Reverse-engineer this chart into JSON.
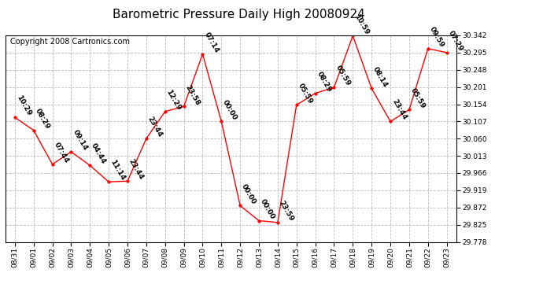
{
  "title": "Barometric Pressure Daily High 20080924",
  "copyright": "Copyright 2008 Cartronics.com",
  "x_labels": [
    "08/31",
    "09/01",
    "09/02",
    "09/03",
    "09/04",
    "09/05",
    "09/06",
    "09/07",
    "09/08",
    "09/09",
    "09/10",
    "09/11",
    "09/12",
    "09/13",
    "09/14",
    "09/15",
    "09/16",
    "09/17",
    "09/18",
    "09/19",
    "09/20",
    "09/21",
    "09/22",
    "09/23"
  ],
  "y_values": [
    30.118,
    30.083,
    29.99,
    30.024,
    29.987,
    29.942,
    29.944,
    30.06,
    30.134,
    30.148,
    30.291,
    30.107,
    29.877,
    29.836,
    29.831,
    30.152,
    30.184,
    30.2,
    30.341,
    30.197,
    30.107,
    30.139,
    30.306,
    30.295
  ],
  "time_labels": [
    "10:29",
    "08:29",
    "07:44",
    "09:14",
    "04:44",
    "11:14",
    "23:44",
    "23:44",
    "12:29",
    "23:58",
    "07:14",
    "00:00",
    "00:00",
    "00:00",
    "23:59",
    "05:59",
    "08:29",
    "05:59",
    "10:59",
    "08:14",
    "23:44",
    "05:59",
    "09:59",
    "07:29"
  ],
  "ylim_min": 29.778,
  "ylim_max": 30.342,
  "yticks": [
    29.778,
    29.825,
    29.872,
    29.919,
    29.966,
    30.013,
    30.06,
    30.107,
    30.154,
    30.201,
    30.248,
    30.295,
    30.342
  ],
  "line_color": "#ff0000",
  "marker_color": "#ff0000",
  "bg_color": "#ffffff",
  "grid_color": "#bbbbbb",
  "title_fontsize": 11,
  "annotation_fontsize": 6.5,
  "copyright_fontsize": 7
}
